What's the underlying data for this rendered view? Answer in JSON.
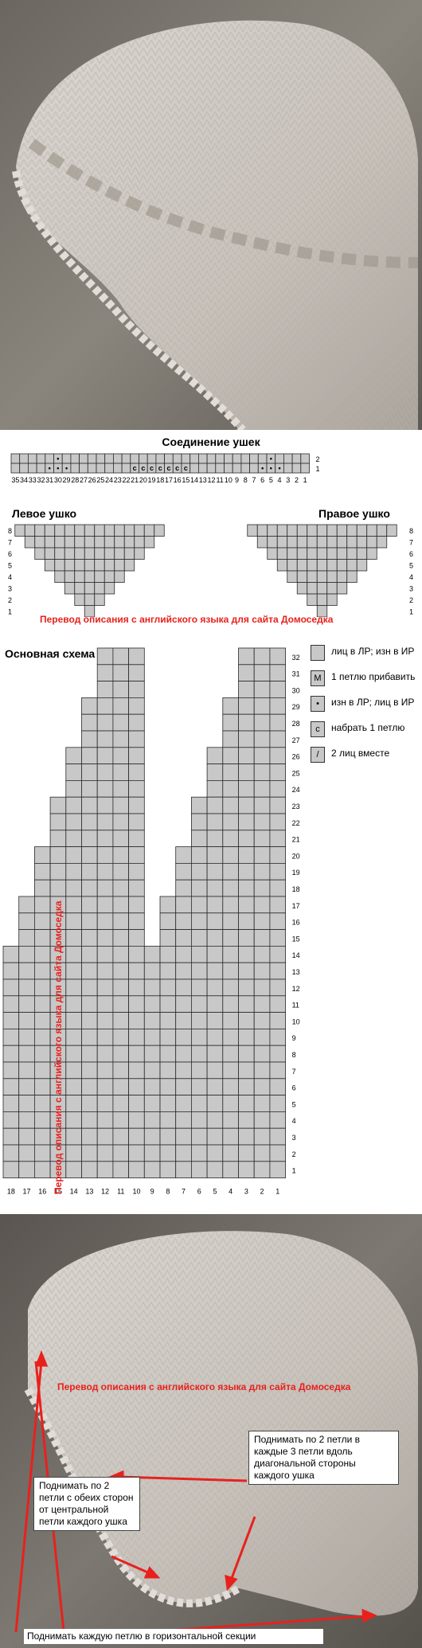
{
  "section_titles": {
    "ear_join": "Соединение ушек",
    "left_ear": "Левое ушко",
    "right_ear": "Правое ушко",
    "main_chart": "Основная схема"
  },
  "watermark": "Перевод описания с английского языка для сайта Домоседка",
  "ear_join_chart": {
    "columns": [
      "35",
      "34",
      "33",
      "32",
      "31",
      "30",
      "29",
      "28",
      "27",
      "26",
      "25",
      "24",
      "23",
      "22",
      "21",
      "20",
      "19",
      "18",
      "17",
      "16",
      "15",
      "14",
      "13",
      "12",
      "11",
      "10",
      "9",
      "8",
      "7",
      "6",
      "5",
      "4",
      "3",
      "2",
      "1"
    ],
    "rows": [
      "2",
      "1"
    ],
    "symbols_row2": {
      "30": "•",
      "5": "•"
    },
    "symbols_row1": {
      "31": "•",
      "30": "•",
      "29": "•",
      "21": "c",
      "20": "c",
      "19": "c",
      "18": "c",
      "17": "c",
      "16": "c",
      "15": "c",
      "6": "•",
      "5": "•",
      "4": "•"
    }
  },
  "ear_rows": [
    "8",
    "7",
    "6",
    "5",
    "4",
    "3",
    "2",
    "1"
  ],
  "main_chart_data": {
    "columns": [
      "18",
      "17",
      "16",
      "15",
      "14",
      "13",
      "12",
      "11",
      "10",
      "9",
      "8",
      "7",
      "6",
      "5",
      "4",
      "3",
      "2",
      "1"
    ],
    "rows": [
      "32",
      "31",
      "30",
      "29",
      "28",
      "27",
      "26",
      "25",
      "24",
      "23",
      "22",
      "21",
      "20",
      "19",
      "18",
      "17",
      "16",
      "15",
      "14",
      "13",
      "12",
      "11",
      "10",
      "9",
      "8",
      "7",
      "6",
      "5",
      "4",
      "3",
      "2",
      "1"
    ]
  },
  "legend": [
    {
      "symbol": "",
      "text": "лиц в ЛР; изн в ИР"
    },
    {
      "symbol": "M",
      "text": "1 петлю прибавить"
    },
    {
      "symbol": "•",
      "text": "изн в ЛР; лиц в ИР"
    },
    {
      "symbol": "c",
      "text": "набрать 1 петлю"
    },
    {
      "symbol": "/",
      "text": "2 лиц вместе"
    }
  ],
  "notes": {
    "diagonal": "Поднимать по 2 петли в каждые 3 петли вдоль диагональной стороны каждого ушка",
    "center": "Поднимать по 2 петли с обеих сторон от центральной петли каждого ушка",
    "horizontal": "Поднимать каждую петлю в горизонтальной секции"
  }
}
